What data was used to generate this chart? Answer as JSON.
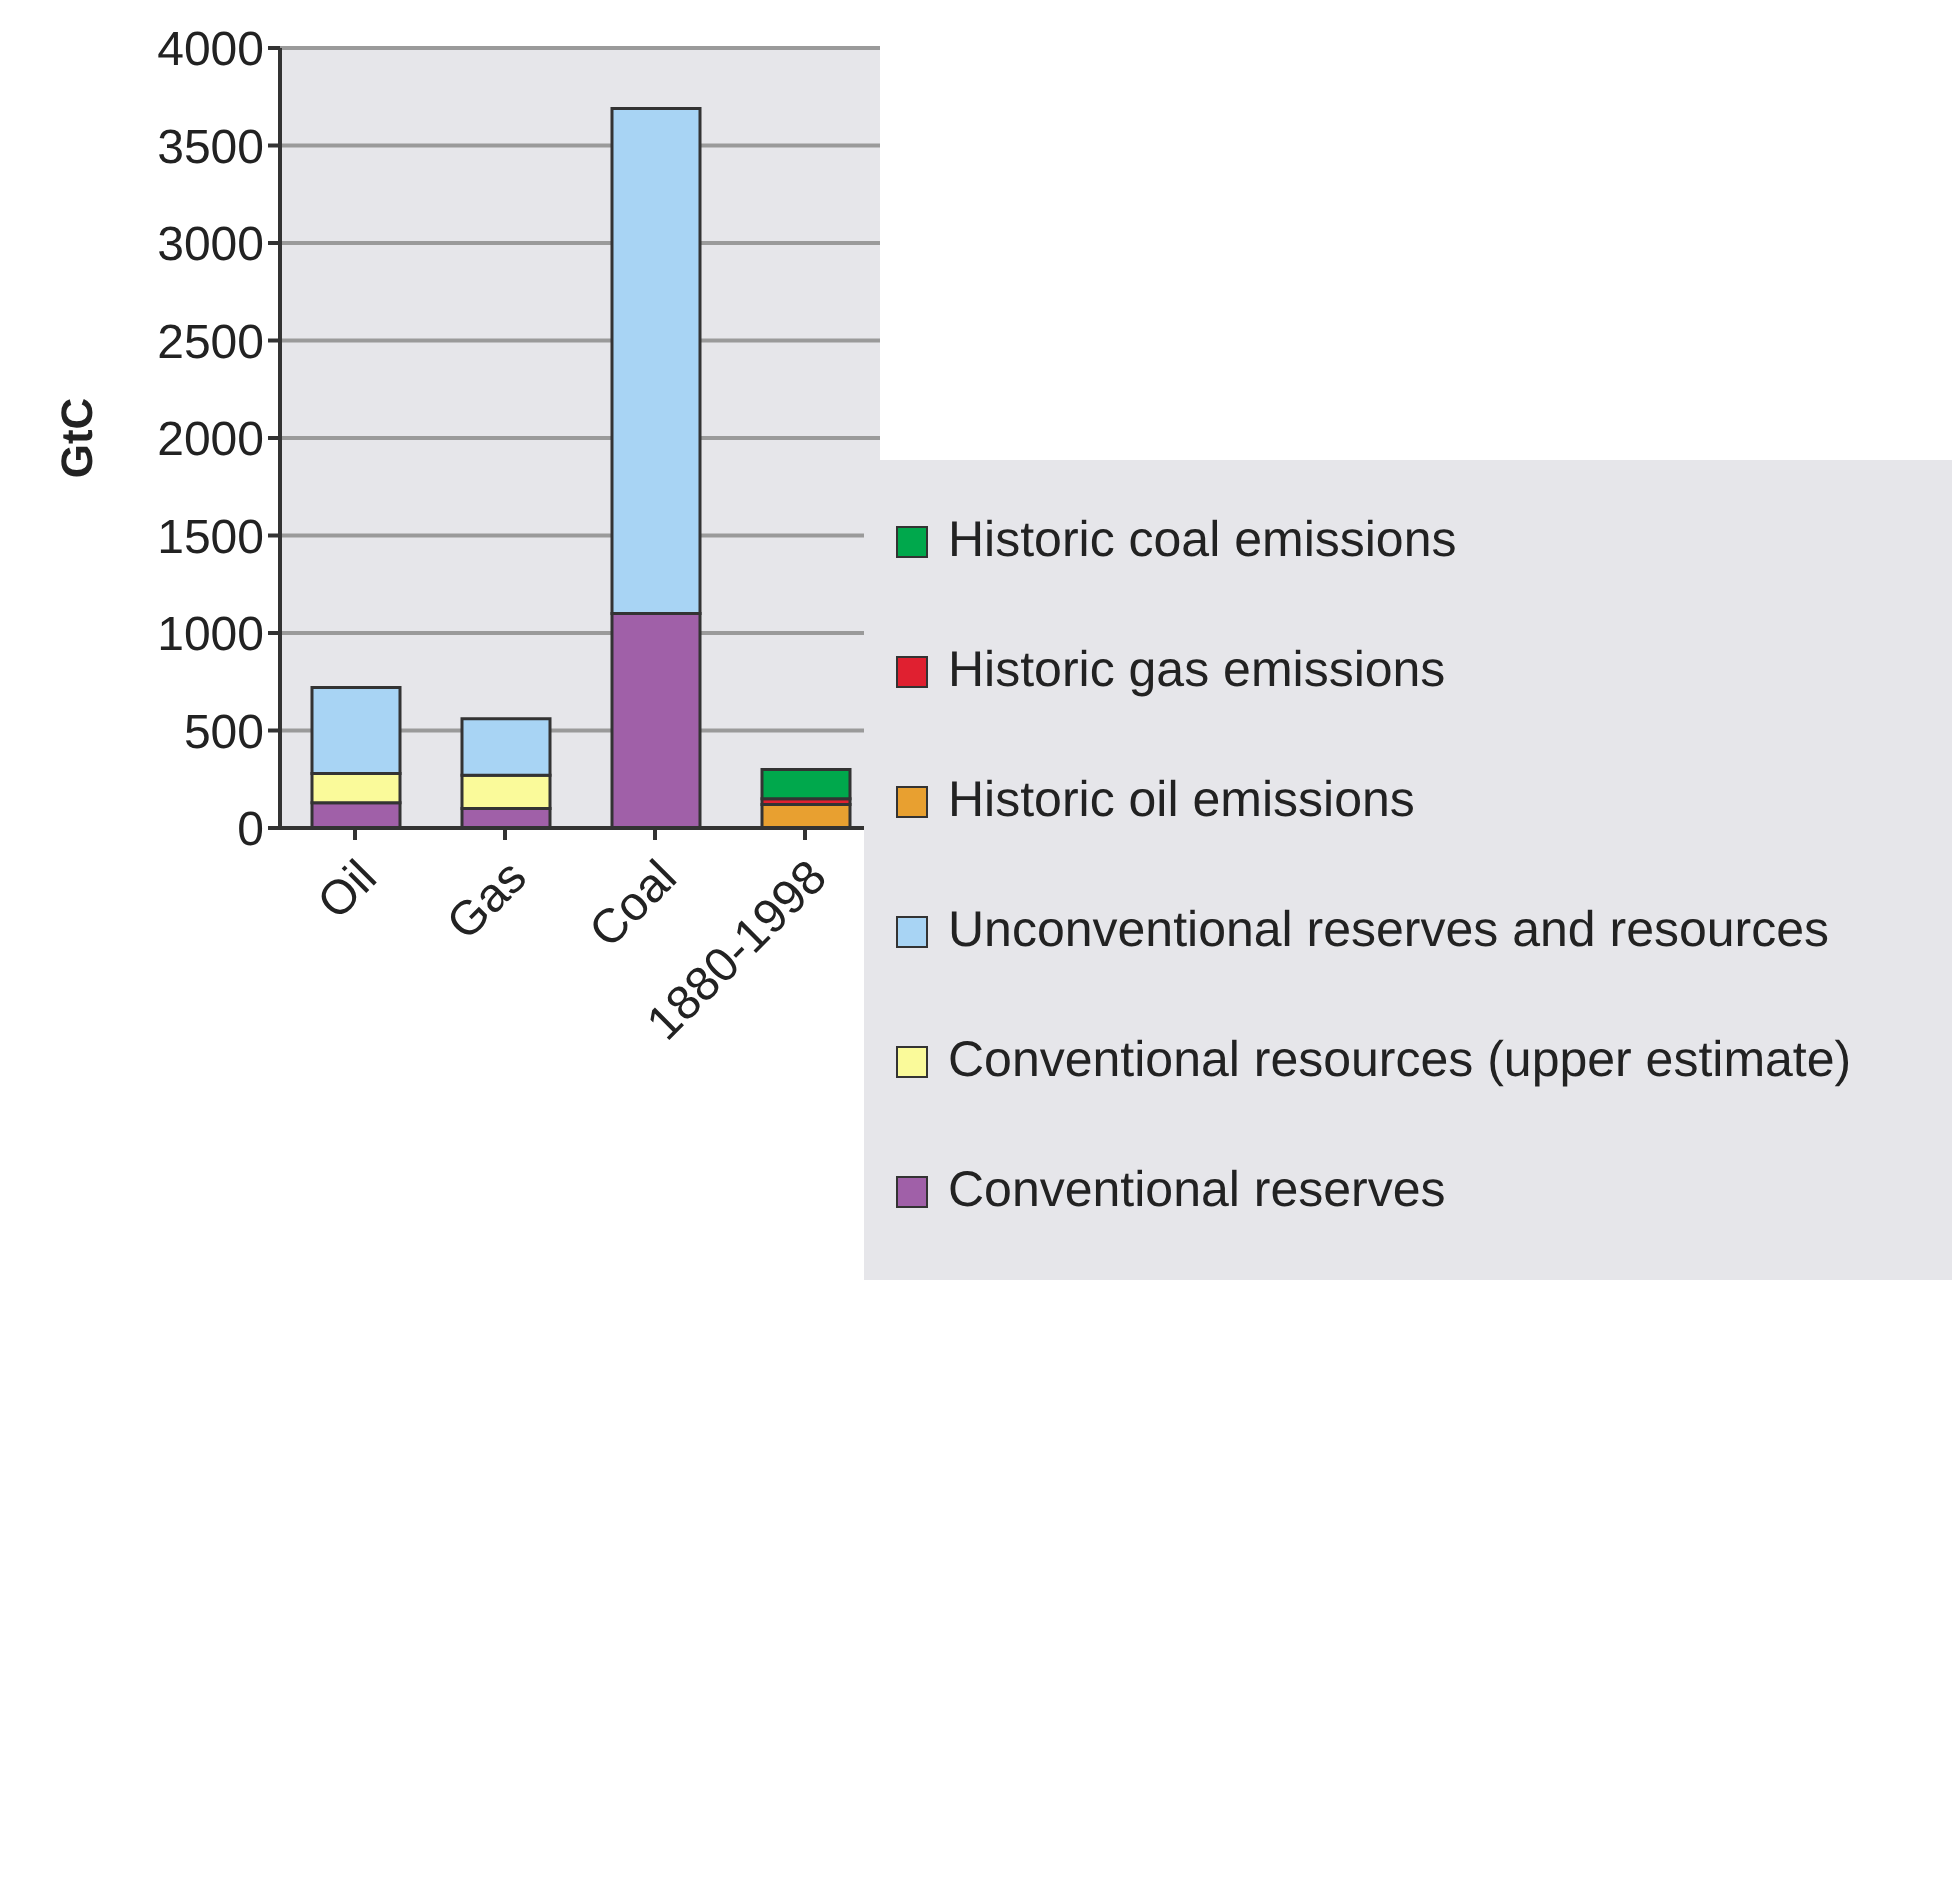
{
  "chart_data": {
    "type": "bar",
    "stacked": true,
    "ylabel": "GtC",
    "categories": [
      "Oil",
      "Gas",
      "Coal",
      "1880-1998"
    ],
    "series": [
      {
        "name": "Conventional reserves",
        "color": "#a060a8",
        "values": [
          130,
          100,
          1100,
          null
        ]
      },
      {
        "name": "Conventional resources (upper estimate)",
        "color": "#fafa9a",
        "values": [
          150,
          170,
          null,
          null
        ]
      },
      {
        "name": "Unconventional reserves and resources",
        "color": "#a8d4f4",
        "values": [
          440,
          290,
          2590,
          null
        ]
      },
      {
        "name": "Historic oil emissions",
        "color": "#e8a030",
        "values": [
          null,
          null,
          null,
          120
        ]
      },
      {
        "name": "Historic gas emissions",
        "color": "#e02030",
        "values": [
          null,
          null,
          null,
          30
        ]
      },
      {
        "name": "Historic coal emissions",
        "color": "#00a84c",
        "values": [
          null,
          null,
          null,
          150
        ]
      }
    ],
    "ylim": [
      0,
      4000
    ],
    "yticks": [
      0,
      500,
      1000,
      1500,
      2000,
      2500,
      3000,
      3500,
      4000
    ],
    "grid": "y",
    "legend": "right"
  }
}
